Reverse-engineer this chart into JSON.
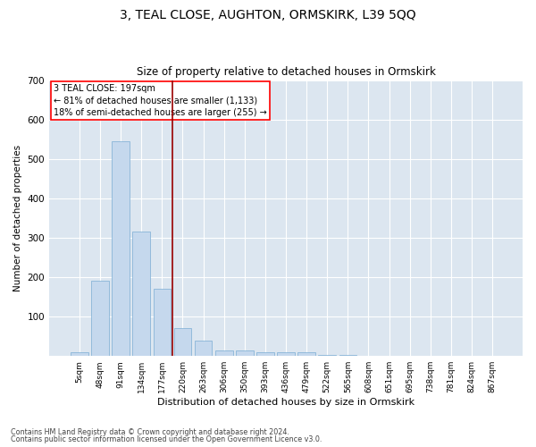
{
  "title": "3, TEAL CLOSE, AUGHTON, ORMSKIRK, L39 5QQ",
  "subtitle": "Size of property relative to detached houses in Ormskirk",
  "xlabel": "Distribution of detached houses by size in Ormskirk",
  "ylabel": "Number of detached properties",
  "bar_color": "#c5d8ed",
  "bar_edge_color": "#7aadd4",
  "background_color": "#dce6f0",
  "property_label": "3 TEAL CLOSE: 197sqm",
  "annotation_line1": "← 81% of detached houses are smaller (1,133)",
  "annotation_line2": "18% of semi-detached houses are larger (255) →",
  "vline_color": "#990000",
  "categories": [
    "5sqm",
    "48sqm",
    "91sqm",
    "134sqm",
    "177sqm",
    "220sqm",
    "263sqm",
    "306sqm",
    "350sqm",
    "393sqm",
    "436sqm",
    "479sqm",
    "522sqm",
    "565sqm",
    "608sqm",
    "651sqm",
    "695sqm",
    "738sqm",
    "781sqm",
    "824sqm",
    "867sqm"
  ],
  "values": [
    9,
    190,
    545,
    315,
    170,
    70,
    40,
    14,
    15,
    10,
    10,
    9,
    3,
    2,
    1,
    1,
    1,
    1,
    1,
    1,
    1
  ],
  "ylim": [
    0,
    700
  ],
  "vline_x": 4.5,
  "footer_line1": "Contains HM Land Registry data © Crown copyright and database right 2024.",
  "footer_line2": "Contains public sector information licensed under the Open Government Licence v3.0."
}
